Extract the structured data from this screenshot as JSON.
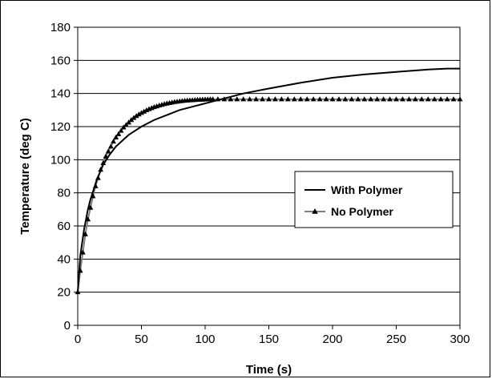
{
  "chart_data": {
    "type": "line",
    "title": "",
    "xlabel": "Time (s)",
    "ylabel": "Temperature (deg C)",
    "xlim": [
      0,
      300
    ],
    "ylim": [
      0,
      180
    ],
    "x_ticks": [
      "0",
      "50",
      "100",
      "150",
      "200",
      "250",
      "300"
    ],
    "y_ticks": [
      "0",
      "20",
      "40",
      "60",
      "80",
      "100",
      "120",
      "140",
      "160",
      "180"
    ],
    "grid": "horizontal",
    "legend": "right",
    "series": [
      {
        "name": "With Polymer",
        "color": "#000000",
        "marker": "none",
        "x": [
          0,
          2,
          5,
          8,
          10,
          15,
          20,
          25,
          30,
          40,
          50,
          60,
          70,
          80,
          90,
          100,
          110,
          120,
          130,
          140,
          150,
          175,
          200,
          225,
          250,
          275,
          290,
          300
        ],
        "y": [
          20,
          42,
          58,
          70,
          76,
          88,
          97,
          103,
          108,
          115,
          120,
          124,
          127,
          130,
          132,
          134,
          136,
          138,
          140,
          141.5,
          143,
          146.5,
          149.5,
          151.5,
          153,
          154.5,
          155,
          155
        ]
      },
      {
        "name": "No Polymer",
        "color": "#7f7f7f",
        "marker": "triangle",
        "x": [
          0,
          2,
          4,
          6,
          8,
          10,
          12,
          14,
          16,
          18,
          20,
          22,
          24,
          26,
          28,
          30,
          32,
          34,
          36,
          38,
          40,
          42,
          44,
          46,
          48,
          50,
          52,
          54,
          56,
          58,
          60,
          62,
          64,
          66,
          68,
          70,
          72,
          74,
          76,
          78,
          80,
          82,
          84,
          86,
          88,
          90,
          92,
          94,
          96,
          98,
          100,
          102,
          104,
          106,
          110,
          115,
          120,
          125,
          130,
          135,
          140,
          145,
          150,
          155,
          160,
          165,
          170,
          175,
          180,
          185,
          190,
          195,
          200,
          205,
          210,
          215,
          220,
          225,
          230,
          235,
          240,
          245,
          250,
          255,
          260,
          265,
          270,
          275,
          280,
          285,
          290,
          295,
          300
        ],
        "y": [
          20,
          33,
          44,
          55,
          64,
          71,
          78,
          84,
          89,
          94,
          98,
          102,
          105,
          108,
          111,
          113.5,
          115.5,
          117.5,
          119.5,
          121,
          122.5,
          124,
          125.3,
          126.4,
          127.4,
          128.3,
          129.1,
          129.9,
          130.6,
          131.2,
          131.8,
          132.3,
          132.8,
          133.2,
          133.6,
          134,
          134.3,
          134.6,
          134.9,
          135.1,
          135.3,
          135.5,
          135.7,
          135.8,
          135.9,
          136,
          136.1,
          136.2,
          136.3,
          136.35,
          136.4,
          136.45,
          136.5,
          136.5,
          136.5,
          136.5,
          136.5,
          136.5,
          136.5,
          136.5,
          136.5,
          136.5,
          136.5,
          136.5,
          136.5,
          136.5,
          136.5,
          136.5,
          136.5,
          136.5,
          136.5,
          136.5,
          136.5,
          136.5,
          136.5,
          136.5,
          136.5,
          136.5,
          136.5,
          136.5,
          136.5,
          136.5,
          136.5,
          136.5,
          136.5,
          136.5,
          136.5,
          136.5,
          136.5,
          136.5,
          136.5,
          136.5,
          136.5
        ]
      }
    ]
  }
}
